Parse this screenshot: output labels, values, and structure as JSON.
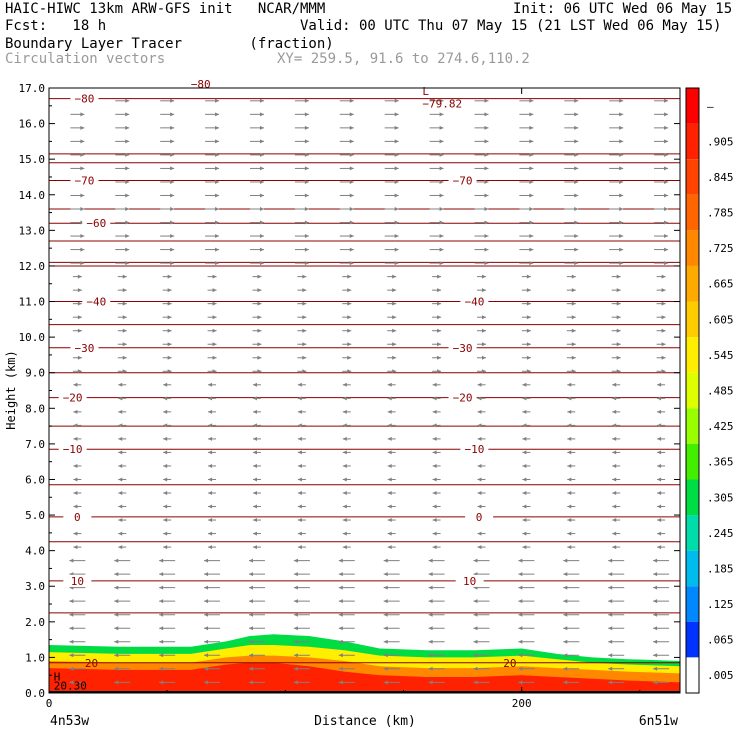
{
  "header": {
    "model_line": "HAIC-HIWC 13km ARW-GFS init   NCAR/MMM",
    "init_line": "Init: 06 UTC Wed 06 May 15",
    "fcst_line": "Fcst:   18 h",
    "valid_line": "Valid: 00 UTC Thu 07 May 15 (21 LST Wed 06 May 15)",
    "field_line": "Boundary Layer Tracer        (fraction)",
    "vector_line": "Circulation vectors",
    "xy_line": "XY= 259.5, 91.6 to 274.6,110.2"
  },
  "chart_data": {
    "type": "heatmap",
    "ylabel": "Height (km)",
    "xlabel": "Distance (km)",
    "ylim": [
      0,
      17
    ],
    "xlim": [
      0,
      267
    ],
    "y_ticks": [
      "0.0",
      "1.0",
      "2.0",
      "3.0",
      "4.0",
      "5.0",
      "6.0",
      "7.0",
      "8.0",
      "9.0",
      "10.0",
      "11.0",
      "12.0",
      "13.0",
      "14.0",
      "15.0",
      "16.0",
      "17.0"
    ],
    "x_ticks": [
      {
        "value": 0,
        "label": "0"
      },
      {
        "value": 200,
        "label": "200"
      }
    ],
    "x_end_labels": {
      "left": "4n53w",
      "right": "6n51w"
    },
    "colorbar": {
      "labels": [
        "–",
        ".905",
        ".845",
        ".785",
        ".725",
        ".665",
        ".605",
        ".545",
        ".485",
        ".425",
        ".365",
        ".305",
        ".245",
        ".185",
        ".125",
        ".065",
        ".005"
      ],
      "colors": [
        "#ff0000",
        "#ff2200",
        "#ff4400",
        "#ff6600",
        "#ff8800",
        "#ffaa00",
        "#ffcc00",
        "#ffee00",
        "#ddff00",
        "#99ff00",
        "#44ee00",
        "#00dd44",
        "#00ddaa",
        "#00bbee",
        "#0088ff",
        "#0033ff",
        "#ffffff"
      ]
    },
    "tracer_profile": {
      "x_km": [
        0,
        30,
        60,
        75,
        85,
        95,
        110,
        125,
        140,
        160,
        180,
        200,
        215,
        230,
        245,
        267
      ],
      "top_height_km": [
        1.55,
        1.5,
        1.5,
        1.65,
        1.85,
        1.9,
        1.9,
        1.75,
        1.5,
        1.45,
        1.45,
        1.5,
        1.3,
        1.2,
        1.1,
        1.05
      ],
      "bottom_layers": [
        {
          "value": 0.005,
          "top_km": [
            1.55,
            1.5,
            1.5,
            1.65,
            1.85,
            1.9,
            1.9,
            1.75,
            1.5,
            1.45,
            1.45,
            1.5,
            1.3,
            1.2,
            1.1,
            1.05
          ]
        },
        {
          "value": 0.305,
          "top_km": [
            1.35,
            1.3,
            1.3,
            1.45,
            1.6,
            1.65,
            1.6,
            1.45,
            1.25,
            1.2,
            1.2,
            1.25,
            1.1,
            1.0,
            0.95,
            0.9
          ]
        },
        {
          "value": 0.545,
          "top_km": [
            1.15,
            1.1,
            1.1,
            1.25,
            1.35,
            1.35,
            1.3,
            1.2,
            1.05,
            1.0,
            1.0,
            1.05,
            0.95,
            0.85,
            0.8,
            0.75
          ]
        },
        {
          "value": 0.725,
          "top_km": [
            0.9,
            0.85,
            0.85,
            1.0,
            1.05,
            1.05,
            1.0,
            0.9,
            0.75,
            0.7,
            0.7,
            0.75,
            0.7,
            0.65,
            0.6,
            0.55
          ]
        },
        {
          "value": 0.905,
          "top_km": [
            0.7,
            0.65,
            0.65,
            0.8,
            0.85,
            0.85,
            0.75,
            0.6,
            0.5,
            0.45,
            0.45,
            0.5,
            0.45,
            0.4,
            0.35,
            0.3
          ]
        }
      ]
    },
    "isotherms": [
      {
        "value": -80,
        "height_km": 16.7,
        "labels_km": [
          {
            "x": 15,
            "label": "−80"
          }
        ]
      },
      {
        "value": -70,
        "height_km": 14.4,
        "labels_km": [
          {
            "x": 15,
            "label": "−70"
          },
          {
            "x": 175,
            "label": "−70"
          }
        ]
      },
      {
        "value": -60,
        "height_km": 13.2,
        "labels_km": [
          {
            "x": 20,
            "label": "−60"
          }
        ]
      },
      {
        "value": -50,
        "height_km": 12.0,
        "labels_km": []
      },
      {
        "value": -40,
        "height_km": 11.0,
        "labels_km": [
          {
            "x": 20,
            "label": "−40"
          },
          {
            "x": 180,
            "label": "−40"
          }
        ]
      },
      {
        "value": -30,
        "height_km": 9.7,
        "labels_km": [
          {
            "x": 15,
            "label": "−30"
          },
          {
            "x": 175,
            "label": "−30"
          }
        ]
      },
      {
        "value": -20,
        "height_km": 8.3,
        "labels_km": [
          {
            "x": 10,
            "label": "−20"
          },
          {
            "x": 175,
            "label": "−20"
          }
        ]
      },
      {
        "value": -10,
        "height_km": 6.85,
        "labels_km": [
          {
            "x": 10,
            "label": "−10"
          },
          {
            "x": 180,
            "label": "−10"
          }
        ]
      },
      {
        "value": 0,
        "height_km": 4.95,
        "labels_km": [
          {
            "x": 12,
            "label": "0"
          },
          {
            "x": 182,
            "label": "0"
          }
        ]
      },
      {
        "value": 10,
        "height_km": 3.15,
        "labels_km": [
          {
            "x": 12,
            "label": "10"
          },
          {
            "x": 178,
            "label": "10"
          }
        ]
      },
      {
        "value": 20,
        "height_km": 0.85,
        "labels_km": [
          {
            "x": 18,
            "label": "20"
          },
          {
            "x": 195,
            "label": "20"
          }
        ]
      }
    ],
    "extra_isolines_km": [
      15.15,
      14.9,
      13.6,
      12.7,
      12.1,
      10.35,
      9.0,
      7.5,
      5.85,
      4.25,
      2.25
    ],
    "annotations": [
      {
        "text": "L",
        "x_km": 158,
        "y_km": 16.8
      },
      {
        "text": "−79.82",
        "x_km": 158,
        "y_km": 16.45
      },
      {
        "text": "−80",
        "x_km": 60,
        "y_km": 17.0
      },
      {
        "text": "H",
        "x_km": 2,
        "y_km": 0.35
      },
      {
        "text": "20.30",
        "x_km": 2,
        "y_km": 0.1
      }
    ],
    "vectors": {
      "upper_direction": "eastward",
      "lower_direction": "westward",
      "reversal_height_km": 9.0,
      "color": "#808080"
    },
    "isotherm_color": "#8b0000"
  }
}
